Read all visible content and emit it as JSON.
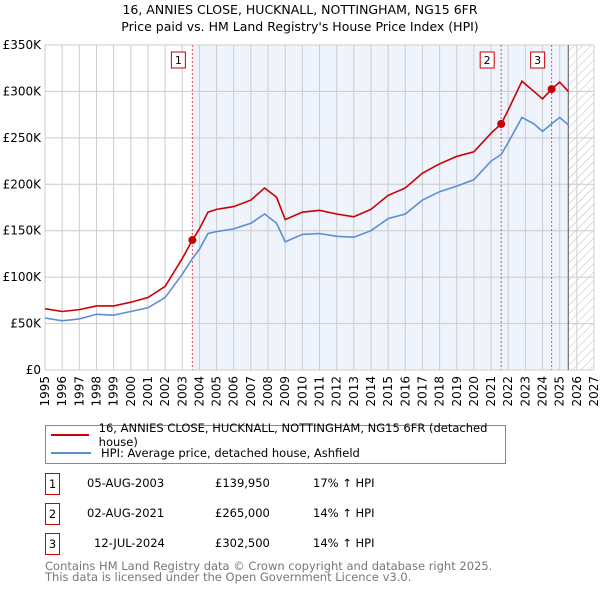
{
  "header": {
    "title": "16, ANNIES CLOSE, HUCKNALL, NOTTINGHAM, NG15 6FR",
    "subtitle": "Price paid vs. HM Land Registry's House Price Index (HPI)"
  },
  "chart_data": {
    "type": "line",
    "title": "16, ANNIES CLOSE, HUCKNALL, NOTTINGHAM, NG15 6FR — Price paid vs. HM Land Registry's House Price Index (HPI)",
    "xlim": [
      1995,
      2027
    ],
    "ylim": [
      0,
      350000
    ],
    "x_ticks": [
      "1995",
      "1996",
      "1997",
      "1998",
      "1999",
      "2000",
      "2001",
      "2002",
      "2003",
      "2004",
      "2005",
      "2006",
      "2007",
      "2008",
      "2009",
      "2010",
      "2011",
      "2012",
      "2013",
      "2014",
      "2015",
      "2016",
      "2017",
      "2018",
      "2019",
      "2020",
      "2021",
      "2022",
      "2023",
      "2024",
      "2025",
      "2026",
      "2027"
    ],
    "y_ticks": [
      {
        "v": 0,
        "label": "£0"
      },
      {
        "v": 50000,
        "label": "£50K"
      },
      {
        "v": 100000,
        "label": "£100K"
      },
      {
        "v": 150000,
        "label": "£150K"
      },
      {
        "v": 200000,
        "label": "£200K"
      },
      {
        "v": 250000,
        "label": "£250K"
      },
      {
        "v": 300000,
        "label": "£300K"
      },
      {
        "v": 350000,
        "label": "£350K"
      }
    ],
    "grid": true,
    "series": [
      {
        "name": "16, ANNIES CLOSE, HUCKNALL, NOTTINGHAM, NG15 6FR (detached house)",
        "color": "#cc0000",
        "x": [
          1995,
          1996,
          1997,
          1998,
          1999,
          2000,
          2001,
          2002,
          2003,
          2003.59,
          2004,
          2004.5,
          2005,
          2006,
          2007,
          2007.8,
          2008.5,
          2009,
          2010,
          2011,
          2012,
          2013,
          2014,
          2015,
          2016,
          2017,
          2018,
          2019,
          2020,
          2021,
          2021.59,
          2022,
          2022.8,
          2023.5,
          2024,
          2024.53,
          2025,
          2025.5
        ],
        "values": [
          66000,
          63000,
          65000,
          69000,
          69000,
          73000,
          78000,
          90000,
          120000,
          139950,
          152000,
          170000,
          173000,
          176000,
          183000,
          196000,
          186000,
          162000,
          170000,
          172000,
          168000,
          165000,
          173000,
          188000,
          196000,
          212000,
          222000,
          230000,
          235000,
          255000,
          265000,
          280000,
          311000,
          300000,
          292000,
          302500,
          310000,
          300000
        ]
      },
      {
        "name": "HPI: Average price, detached house, Ashfield",
        "color": "#5b8fd4",
        "x": [
          1995,
          1996,
          1997,
          1998,
          1999,
          2000,
          2001,
          2002,
          2003,
          2003.59,
          2004,
          2004.5,
          2005,
          2006,
          2007,
          2007.8,
          2008.5,
          2009,
          2010,
          2011,
          2012,
          2013,
          2014,
          2015,
          2016,
          2017,
          2018,
          2019,
          2020,
          2021,
          2021.59,
          2022,
          2022.8,
          2023.5,
          2024,
          2024.53,
          2025,
          2025.5
        ],
        "values": [
          56000,
          53000,
          55000,
          60000,
          59000,
          63000,
          67000,
          78000,
          103000,
          120000,
          130000,
          147000,
          149000,
          152000,
          158000,
          168000,
          158000,
          138000,
          146000,
          147000,
          144000,
          143000,
          150000,
          163000,
          168000,
          183000,
          192000,
          198000,
          205000,
          225000,
          232000,
          245000,
          272000,
          265000,
          257000,
          265000,
          272000,
          264000
        ]
      }
    ],
    "sales": [
      {
        "label": "1",
        "x": 2003.59,
        "value": 139950
      },
      {
        "label": "2",
        "x": 2021.59,
        "value": 265000
      },
      {
        "label": "3",
        "x": 2024.53,
        "value": 302500
      }
    ],
    "shaded_range": [
      2003.59,
      2025.5
    ],
    "forecast_hatch": [
      2025.5,
      2027
    ],
    "legend": "below"
  },
  "legend": {
    "property": "16, ANNIES CLOSE, HUCKNALL, NOTTINGHAM, NG15 6FR (detached house)",
    "hpi": "HPI: Average price, detached house, Ashfield"
  },
  "table": [
    {
      "num": "1",
      "date": "05-AUG-2003",
      "price": "£139,950",
      "hpi": "17% ↑ HPI"
    },
    {
      "num": "2",
      "date": "02-AUG-2021",
      "price": "£265,000",
      "hpi": "14% ↑ HPI"
    },
    {
      "num": "3",
      "date": "12-JUL-2024",
      "price": "£302,500",
      "hpi": "14% ↑ HPI"
    }
  ],
  "footer": {
    "line1": "Contains HM Land Registry data © Crown copyright and database right 2025.",
    "line2": "This data is licensed under the Open Government Licence v3.0."
  }
}
